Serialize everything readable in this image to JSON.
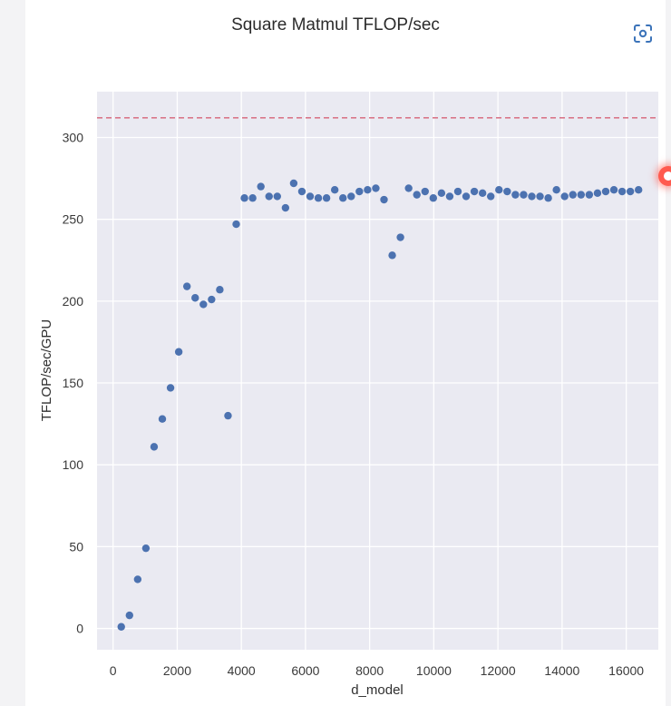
{
  "chart_data": {
    "type": "scatter",
    "title": "Square Matmul TFLOP/sec",
    "xlabel": "d_model",
    "ylabel": "TFLOP/sec/GPU",
    "xlim": [
      -500,
      17000
    ],
    "ylim": [
      -13,
      328
    ],
    "x_ticks": [
      0,
      2000,
      4000,
      6000,
      8000,
      10000,
      12000,
      14000,
      16000
    ],
    "y_ticks": [
      0,
      50,
      100,
      150,
      200,
      250,
      300
    ],
    "grid": true,
    "reference_line": {
      "y": 312,
      "style": "dashed"
    },
    "series": [
      {
        "x": [
          256,
          512,
          768,
          1024,
          1280,
          1536,
          1792,
          2048,
          2304,
          2560,
          2816,
          3072,
          3328,
          3584,
          3840,
          4096,
          4352,
          4608,
          4864,
          5120,
          5376,
          5632,
          5888,
          6144,
          6400,
          6656,
          6912,
          7168,
          7424,
          7680,
          7936,
          8192,
          8448,
          8704,
          8960,
          9216,
          9472,
          9728,
          9984,
          10240,
          10496,
          10752,
          11008,
          11264,
          11520,
          11776,
          12032,
          12288,
          12544,
          12800,
          13056,
          13312,
          13568,
          13824,
          14080,
          14336,
          14592,
          14848,
          15104,
          15360,
          15616,
          15872,
          16128,
          16384
        ],
        "y": [
          1,
          8,
          30,
          49,
          111,
          128,
          147,
          169,
          209,
          202,
          198,
          201,
          207,
          130,
          247,
          263,
          263,
          270,
          264,
          264,
          257,
          272,
          267,
          264,
          263,
          263,
          268,
          263,
          264,
          267,
          268,
          269,
          262,
          228,
          239,
          269,
          265,
          267,
          263,
          266,
          264,
          267,
          264,
          267,
          266,
          264,
          268,
          267,
          265,
          265,
          264,
          264,
          263,
          268,
          264,
          265,
          265,
          265,
          266,
          267,
          268,
          267,
          267,
          268
        ]
      }
    ]
  },
  "ui": {
    "expand_icon": "fullscreen-focus-icon",
    "colors": {
      "point": "#4c72b0",
      "plot_bg": "#eaeaf2",
      "grid": "#ffffff",
      "reference": "#d9778a"
    }
  }
}
